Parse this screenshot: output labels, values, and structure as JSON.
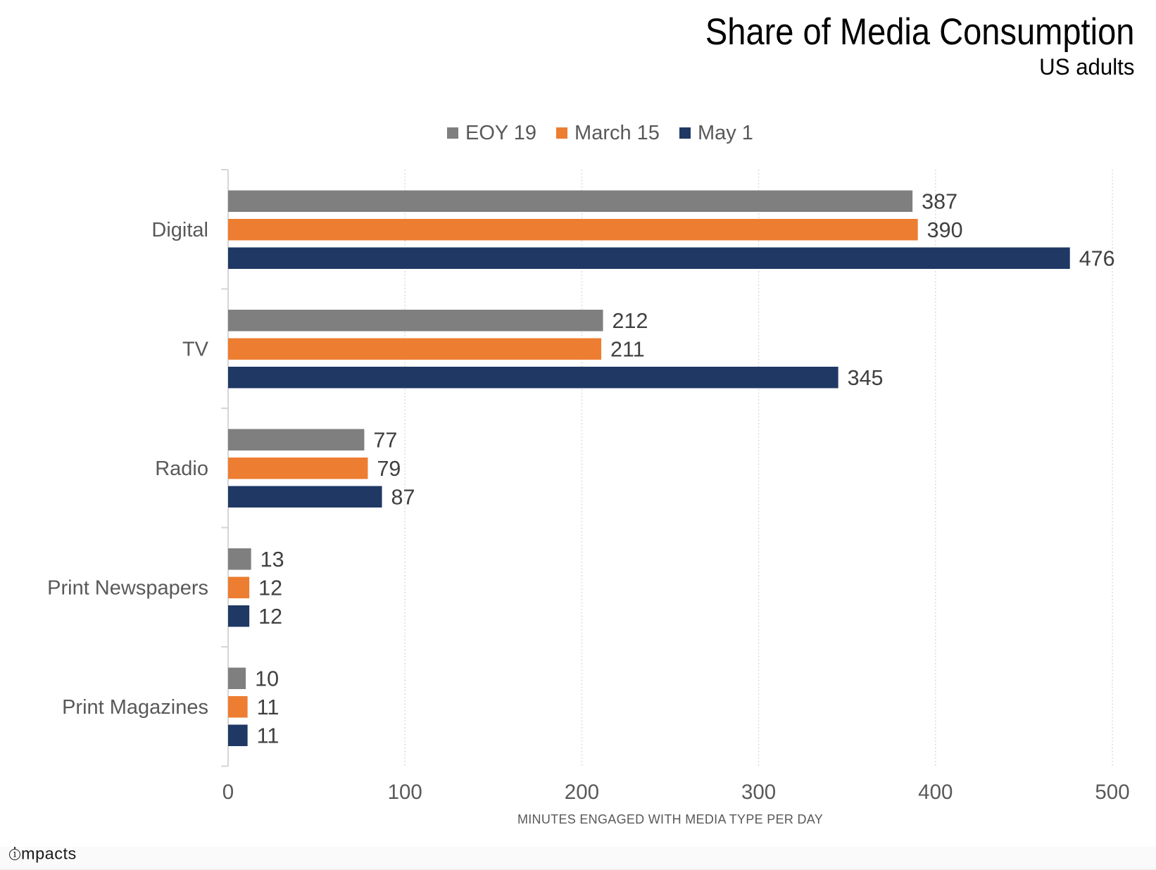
{
  "chart_data": {
    "type": "bar",
    "orientation": "horizontal",
    "title": "Share of Media Consumption",
    "subtitle": "US adults",
    "categories": [
      "Digital",
      "TV",
      "Radio",
      "Print Newspapers",
      "Print Magazines"
    ],
    "series": [
      {
        "name": "EOY 19",
        "color": "#7f7f7f",
        "values": [
          387,
          212,
          77,
          13,
          10
        ]
      },
      {
        "name": "March 15",
        "color": "#ed7d31",
        "values": [
          390,
          211,
          79,
          12,
          11
        ]
      },
      {
        "name": "May 1",
        "color": "#1f3864",
        "values": [
          476,
          345,
          87,
          12,
          11
        ]
      }
    ],
    "xlabel": "MINUTES ENGAGED WITH MEDIA TYPE PER DAY",
    "ylabel": "",
    "xlim": [
      0,
      500
    ],
    "xticks": [
      0,
      100,
      200,
      300,
      400,
      500
    ],
    "grid": "vertical-dotted",
    "legend_position": "top-center",
    "value_labels": true
  },
  "styles": {
    "axis_color": "#d6d6d6",
    "grid_color": "#d9d9d9",
    "tick_label_color": "#595959",
    "category_label_color": "#595959",
    "value_label_color": "#404040",
    "axis_title_color": "#595959",
    "title_color": "#000000"
  },
  "footer": {
    "logo_icon": "circled-i-icon",
    "logo_i": "ı",
    "logo_rest": "mpacts"
  }
}
